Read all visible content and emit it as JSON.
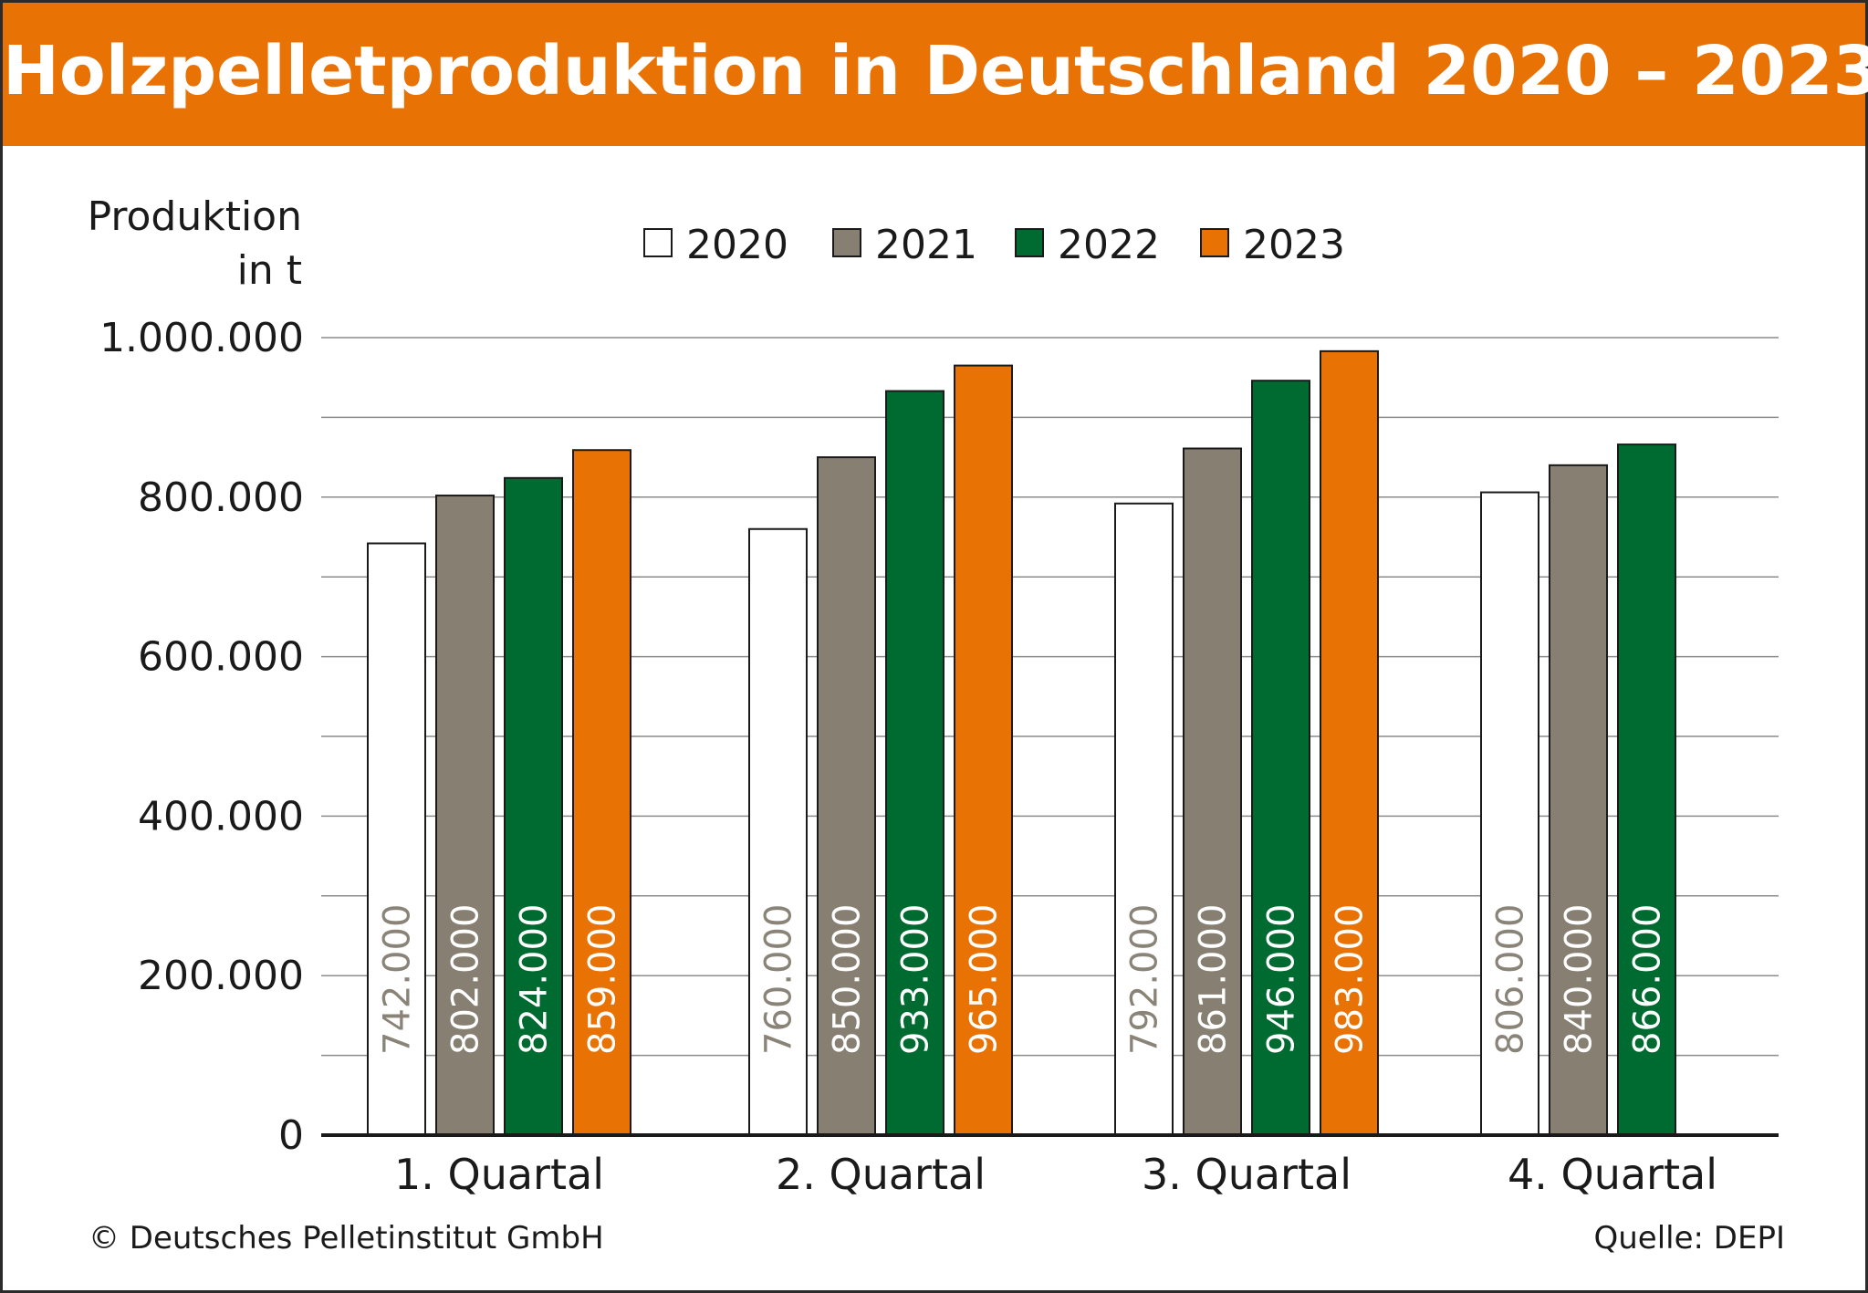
{
  "title": "Holzpelletproduktion in Deutschland 2020 – 2023",
  "footer": {
    "copyright": "© Deutsches Pelletinstitut GmbH",
    "source": "Quelle: DEPI"
  },
  "chart_data": {
    "type": "bar",
    "title": "Holzpelletproduktion in Deutschland 2020 – 2023",
    "ylabel_lines": [
      "Produktion",
      "in t"
    ],
    "xlabel": "",
    "categories": [
      "1. Quartal",
      "2. Quartal",
      "3. Quartal",
      "4. Quartal"
    ],
    "ylim": [
      0,
      1000000
    ],
    "yticks": [
      0,
      200000,
      400000,
      600000,
      800000,
      1000000
    ],
    "ytick_labels": [
      "0",
      "200.000",
      "400.000",
      "600.000",
      "800.000",
      "1.000.000"
    ],
    "grid": true,
    "legend_position": "top-center",
    "series": [
      {
        "name": "2020",
        "color": "#ffffff",
        "label_color": "#8a8378",
        "values": [
          742000,
          760000,
          792000,
          806000
        ],
        "labels": [
          "742.000",
          "760.000",
          "792.000",
          "806.000"
        ]
      },
      {
        "name": "2021",
        "color": "#867f72",
        "label_color": "#ffffff",
        "values": [
          802000,
          850000,
          861000,
          840000
        ],
        "labels": [
          "802.000",
          "850.000",
          "861.000",
          "840.000"
        ]
      },
      {
        "name": "2022",
        "color": "#006b31",
        "label_color": "#ffffff",
        "values": [
          824000,
          933000,
          946000,
          866000
        ],
        "labels": [
          "824.000",
          "933.000",
          "946.000",
          "866.000"
        ]
      },
      {
        "name": "2023",
        "color": "#e97205",
        "label_color": "#ffffff",
        "values": [
          859000,
          965000,
          983000,
          null
        ],
        "labels": [
          "859.000",
          "965.000",
          "983.000",
          ""
        ]
      }
    ]
  }
}
